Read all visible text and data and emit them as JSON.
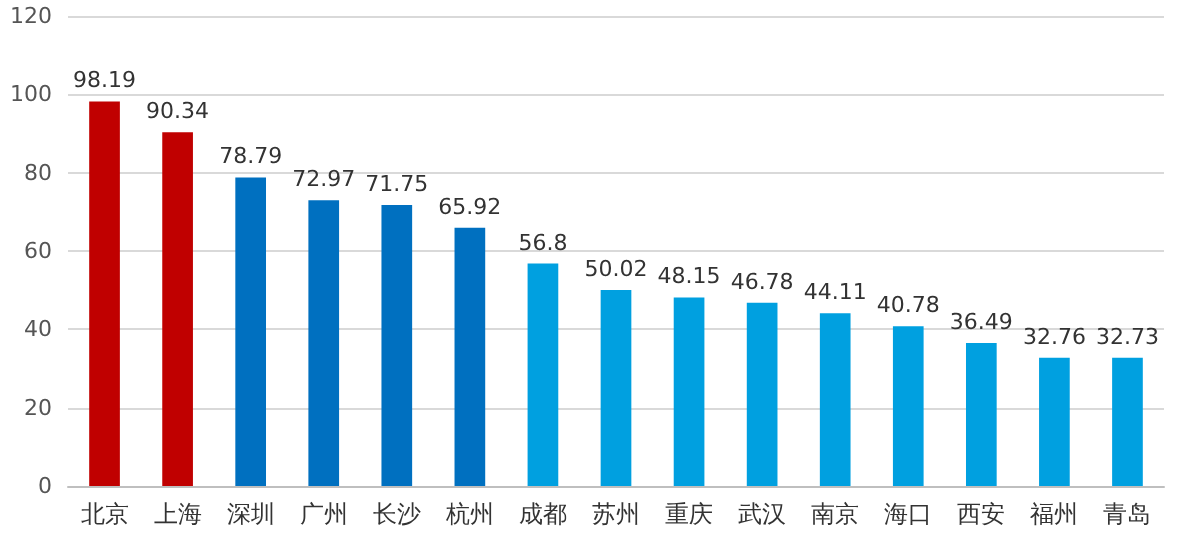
{
  "chart_data": {
    "type": "bar",
    "categories": [
      "北京",
      "上海",
      "深圳",
      "广州",
      "长沙",
      "杭州",
      "成都",
      "苏州",
      "重庆",
      "武汉",
      "南京",
      "海口",
      "西安",
      "福州",
      "青岛"
    ],
    "values": [
      98.19,
      90.34,
      78.79,
      72.97,
      71.75,
      65.92,
      56.8,
      50.02,
      48.15,
      46.78,
      44.11,
      40.78,
      36.49,
      32.76,
      32.73
    ],
    "colors": [
      "#c00000",
      "#c00000",
      "#0070c0",
      "#0070c0",
      "#0070c0",
      "#0070c0",
      "#00a0e0",
      "#00a0e0",
      "#00a0e0",
      "#00a0e0",
      "#00a0e0",
      "#00a0e0",
      "#00a0e0",
      "#00a0e0",
      "#00a0e0"
    ],
    "ylim": [
      0,
      120
    ],
    "yticks": [
      0,
      20,
      40,
      60,
      80,
      100,
      120
    ],
    "grid": "y",
    "data_labels": true
  }
}
